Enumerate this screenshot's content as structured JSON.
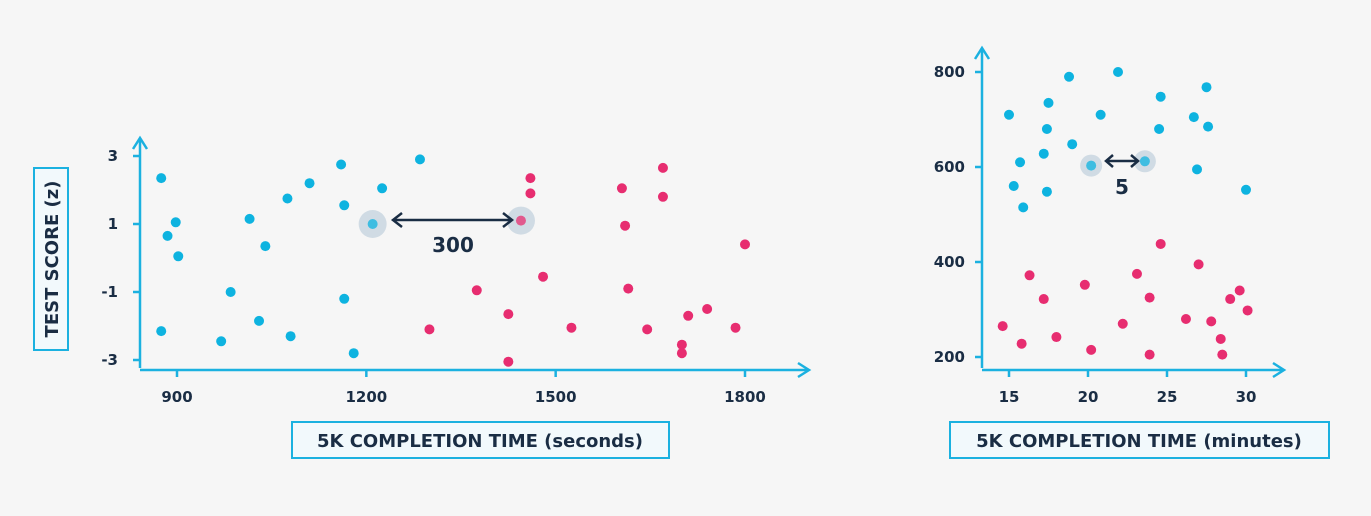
{
  "colors": {
    "axis": "#1bb1e0",
    "blue": "#0eb3e0",
    "pink": "#e72d70",
    "text": "#1a2d44",
    "label_box_fill": "#f2f9fc",
    "label_box_stroke": "#1bb1e0",
    "highlight": "#c9d6e0",
    "background": "#f6f6f6"
  },
  "chart_data": [
    {
      "type": "scatter",
      "xlabel": "5K COMPLETION TIME (seconds)",
      "ylabel": "TEST SCORE (z)",
      "xlim": [
        815,
        1840
      ],
      "ylim": [
        -3.1,
        3.6
      ],
      "xticks": [
        900,
        1200,
        1500,
        1800
      ],
      "xtick_labels": [
        "900",
        "1200",
        "1500",
        "1800"
      ],
      "yticks": [
        3,
        1,
        -1,
        -3
      ],
      "ytick_labels": [
        "3",
        "1",
        "-1",
        "-3"
      ],
      "grid": false,
      "series": [
        {
          "color": "blue",
          "points": [
            [
              875,
              2.35
            ],
            [
              885,
              0.65
            ],
            [
              898,
              1.05
            ],
            [
              902,
              0.05
            ],
            [
              875,
              -2.15
            ],
            [
              970,
              -2.45
            ],
            [
              985,
              -1.0
            ],
            [
              1015,
              1.15
            ],
            [
              1030,
              -1.85
            ],
            [
              1040,
              0.35
            ],
            [
              1075,
              1.75
            ],
            [
              1080,
              -2.3
            ],
            [
              1110,
              2.2
            ],
            [
              1160,
              2.75
            ],
            [
              1165,
              1.55
            ],
            [
              1165,
              -1.2
            ],
            [
              1180,
              -2.8
            ],
            [
              1225,
              2.05
            ],
            [
              1285,
              2.9
            ]
          ]
        },
        {
          "color": "pink",
          "points": [
            [
              1300,
              -2.1
            ],
            [
              1375,
              -0.95
            ],
            [
              1425,
              -1.65
            ],
            [
              1425,
              -3.05
            ],
            [
              1460,
              2.35
            ],
            [
              1460,
              1.9
            ],
            [
              1480,
              -0.55
            ],
            [
              1525,
              -2.05
            ],
            [
              1605,
              2.05
            ],
            [
              1610,
              0.95
            ],
            [
              1615,
              -0.9
            ],
            [
              1645,
              -2.1
            ],
            [
              1670,
              2.65
            ],
            [
              1670,
              1.8
            ],
            [
              1700,
              -2.55
            ],
            [
              1700,
              -2.8
            ],
            [
              1710,
              -1.7
            ],
            [
              1740,
              -1.5
            ],
            [
              1785,
              -2.05
            ],
            [
              1800,
              0.4
            ]
          ]
        }
      ],
      "highlighted_points": [
        {
          "color": "blue",
          "x": 1210,
          "y": 1.0
        },
        {
          "color": "pink",
          "x": 1445,
          "y": 1.1
        }
      ],
      "annotation": {
        "text": "300"
      }
    },
    {
      "type": "scatter",
      "xlabel": "5K COMPLETION TIME (minutes)",
      "ylabel": "",
      "xlim": [
        14,
        32.5
      ],
      "ylim": [
        185,
        855
      ],
      "xticks": [
        15,
        20,
        25,
        30
      ],
      "xtick_labels": [
        "15",
        "20",
        "25",
        "30"
      ],
      "yticks": [
        800,
        600,
        400,
        200
      ],
      "ytick_labels": [
        "800",
        "600",
        "400",
        "200"
      ],
      "grid": false,
      "series": [
        {
          "color": "blue",
          "points": [
            [
              15.0,
              710
            ],
            [
              15.3,
              560
            ],
            [
              15.7,
              610
            ],
            [
              15.9,
              515
            ],
            [
              17.2,
              628
            ],
            [
              17.4,
              680
            ],
            [
              17.5,
              735
            ],
            [
              17.4,
              548
            ],
            [
              18.8,
              790
            ],
            [
              19.0,
              648
            ],
            [
              20.8,
              710
            ],
            [
              21.9,
              800
            ],
            [
              24.5,
              680
            ],
            [
              24.6,
              748
            ],
            [
              26.7,
              705
            ],
            [
              26.9,
              595
            ],
            [
              27.5,
              768
            ],
            [
              27.6,
              685
            ],
            [
              30.0,
              552
            ]
          ]
        },
        {
          "color": "pink",
          "points": [
            [
              14.6,
              265
            ],
            [
              15.8,
              228
            ],
            [
              16.3,
              372
            ],
            [
              17.2,
              322
            ],
            [
              18.0,
              242
            ],
            [
              19.8,
              352
            ],
            [
              20.2,
              215
            ],
            [
              22.2,
              270
            ],
            [
              23.1,
              375
            ],
            [
              23.9,
              325
            ],
            [
              23.9,
              205
            ],
            [
              24.6,
              438
            ],
            [
              26.2,
              280
            ],
            [
              27.0,
              395
            ],
            [
              27.8,
              275
            ],
            [
              28.4,
              238
            ],
            [
              28.5,
              205
            ],
            [
              29.0,
              322
            ],
            [
              29.6,
              340
            ],
            [
              30.1,
              298
            ]
          ]
        }
      ],
      "highlighted_points": [
        {
          "color": "blue",
          "x": 20.2,
          "y": 603
        },
        {
          "color": "blue",
          "x": 23.6,
          "y": 612
        }
      ],
      "annotation": {
        "text": "5"
      }
    }
  ]
}
